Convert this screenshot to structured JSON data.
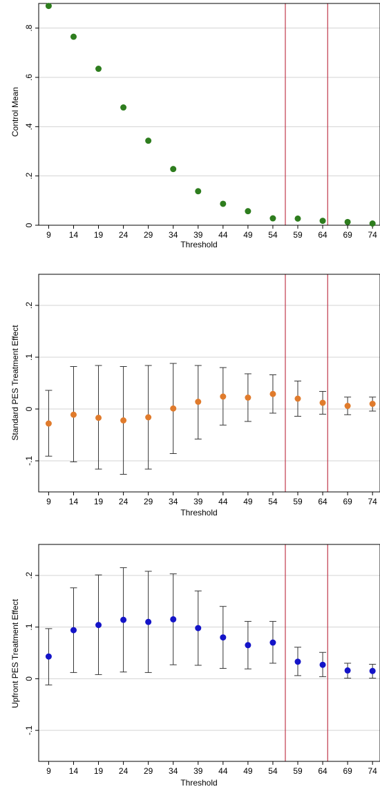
{
  "chart_data": [
    {
      "type": "scatter",
      "ylabel": "Control Mean",
      "xlabel": "Threshold",
      "x": [
        9,
        14,
        19,
        24,
        29,
        34,
        39,
        44,
        49,
        54,
        59,
        64,
        69,
        74
      ],
      "x_tick_labels": [
        "9",
        "14",
        "19",
        "24",
        "29",
        "34",
        "39",
        "44",
        "49",
        "54",
        "59",
        "64",
        "69",
        "74"
      ],
      "y": [
        0.89,
        0.765,
        0.635,
        0.478,
        0.343,
        0.228,
        0.138,
        0.087,
        0.057,
        0.028,
        0.027,
        0.018,
        0.013,
        0.007
      ],
      "ylim": [
        0,
        0.9
      ],
      "y_ticks": [
        0,
        0.2,
        0.4,
        0.6,
        0.8
      ],
      "y_tick_labels": [
        "0",
        ".2",
        ".4",
        ".6",
        ".8"
      ],
      "vlines": [
        56.5,
        65
      ],
      "grid": true,
      "marker_color": "#2e7d1e",
      "vline_color": "#c0394b"
    },
    {
      "type": "scatter",
      "ylabel": "Standard PES Treatment Effect",
      "xlabel": "Threshold",
      "x": [
        9,
        14,
        19,
        24,
        29,
        34,
        39,
        44,
        49,
        54,
        59,
        64,
        69,
        74
      ],
      "x_tick_labels": [
        "9",
        "14",
        "19",
        "24",
        "29",
        "34",
        "39",
        "44",
        "49",
        "54",
        "59",
        "64",
        "69",
        "74"
      ],
      "y": [
        -0.028,
        -0.011,
        -0.017,
        -0.022,
        -0.016,
        0.001,
        0.014,
        0.024,
        0.022,
        0.029,
        0.02,
        0.012,
        0.006,
        0.01
      ],
      "ci_low": [
        -0.091,
        -0.102,
        -0.116,
        -0.126,
        -0.116,
        -0.086,
        -0.058,
        -0.031,
        -0.024,
        -0.008,
        -0.014,
        -0.01,
        -0.011,
        -0.004
      ],
      "ci_high": [
        0.036,
        0.082,
        0.084,
        0.082,
        0.084,
        0.088,
        0.084,
        0.08,
        0.068,
        0.066,
        0.054,
        0.034,
        0.023,
        0.023
      ],
      "ylim": [
        -0.16,
        0.26
      ],
      "y_ticks": [
        -0.1,
        0,
        0.1,
        0.2
      ],
      "y_tick_labels": [
        "-.1",
        "0",
        ".1",
        ".2"
      ],
      "vlines": [
        56.5,
        65
      ],
      "grid": true,
      "marker_color": "#e07b2c",
      "vline_color": "#c0394b"
    },
    {
      "type": "scatter",
      "ylabel": "Upfront PES Treatment Effect",
      "xlabel": "Threshold",
      "x": [
        9,
        14,
        19,
        24,
        29,
        34,
        39,
        44,
        49,
        54,
        59,
        64,
        69,
        74
      ],
      "x_tick_labels": [
        "9",
        "14",
        "19",
        "24",
        "29",
        "34",
        "39",
        "44",
        "49",
        "54",
        "59",
        "64",
        "69",
        "74"
      ],
      "y": [
        0.043,
        0.094,
        0.104,
        0.114,
        0.11,
        0.115,
        0.098,
        0.08,
        0.065,
        0.07,
        0.033,
        0.027,
        0.016,
        0.015
      ],
      "ci_low": [
        -0.012,
        0.012,
        0.008,
        0.013,
        0.012,
        0.027,
        0.026,
        0.02,
        0.019,
        0.03,
        0.006,
        0.004,
        0.001,
        0.001
      ],
      "ci_high": [
        0.097,
        0.176,
        0.201,
        0.215,
        0.208,
        0.203,
        0.17,
        0.14,
        0.111,
        0.111,
        0.061,
        0.051,
        0.03,
        0.028
      ],
      "ylim": [
        -0.16,
        0.26
      ],
      "y_ticks": [
        -0.1,
        0,
        0.1,
        0.2
      ],
      "y_tick_labels": [
        "-.1",
        "0",
        ".1",
        ".2"
      ],
      "vlines": [
        56.5,
        65
      ],
      "grid": true,
      "marker_color": "#1414c8",
      "vline_color": "#c0394b"
    }
  ]
}
